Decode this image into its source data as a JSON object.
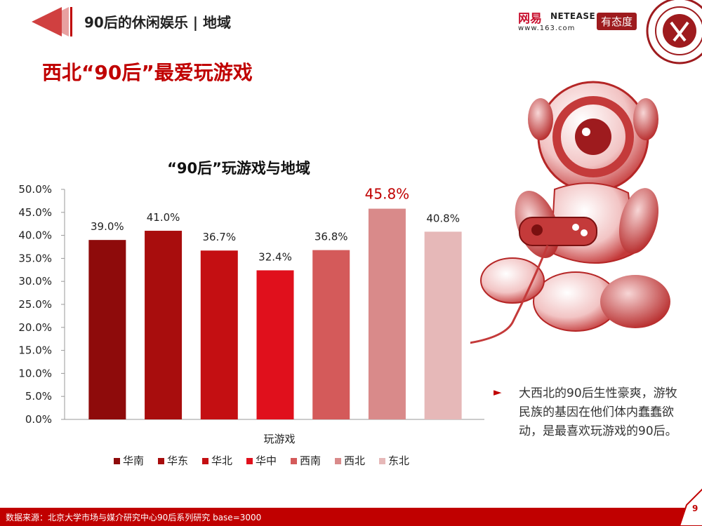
{
  "header": {
    "section_title": "90后的休闲娱乐 | 地域",
    "netease_cn": "网易",
    "netease_en": "NETEASE",
    "netease_url": "www.163.com",
    "youtaidu": "有态度"
  },
  "main_title": "西北“90后”最爱玩游戏",
  "chart_data": {
    "type": "bar",
    "title": "“90后”玩游戏与地域",
    "xlabel": "玩游戏",
    "ylabel": "",
    "ylim": [
      0,
      50
    ],
    "ytick_labels": [
      "0.0%",
      "5.0%",
      "10.0%",
      "15.0%",
      "20.0%",
      "25.0%",
      "30.0%",
      "35.0%",
      "40.0%",
      "45.0%",
      "50.0%"
    ],
    "grid": false,
    "legend_position": "bottom",
    "series": [
      {
        "name": "华南",
        "values": [
          39.0
        ],
        "label": "39.0%",
        "color": "#8e0b0b"
      },
      {
        "name": "华东",
        "values": [
          41.0
        ],
        "label": "41.0%",
        "color": "#a80d0d"
      },
      {
        "name": "华北",
        "values": [
          36.7
        ],
        "label": "36.7%",
        "color": "#c40f12"
      },
      {
        "name": "华中",
        "values": [
          32.4
        ],
        "label": "32.4%",
        "color": "#e0101c"
      },
      {
        "name": "西南",
        "values": [
          36.8
        ],
        "label": "36.8%",
        "color": "#d45a5a"
      },
      {
        "name": "西北",
        "values": [
          45.8
        ],
        "label": "45.8%",
        "color": "#d98a8a"
      },
      {
        "name": "东北",
        "values": [
          40.8
        ],
        "label": "40.8%",
        "color": "#e6b8b8"
      }
    ],
    "highlight": "西北",
    "highlight_color": "#c00000"
  },
  "note": {
    "bullet": "►",
    "text": "大西北的90后生性豪爽，游牧民族的基因在他们体内蠢蠢欲动，是最喜欢玩游戏的90后。"
  },
  "footer": {
    "source": "数据来源：北京大学市场与媒介研究中心90后系列研究 base=3000",
    "page": "9"
  }
}
